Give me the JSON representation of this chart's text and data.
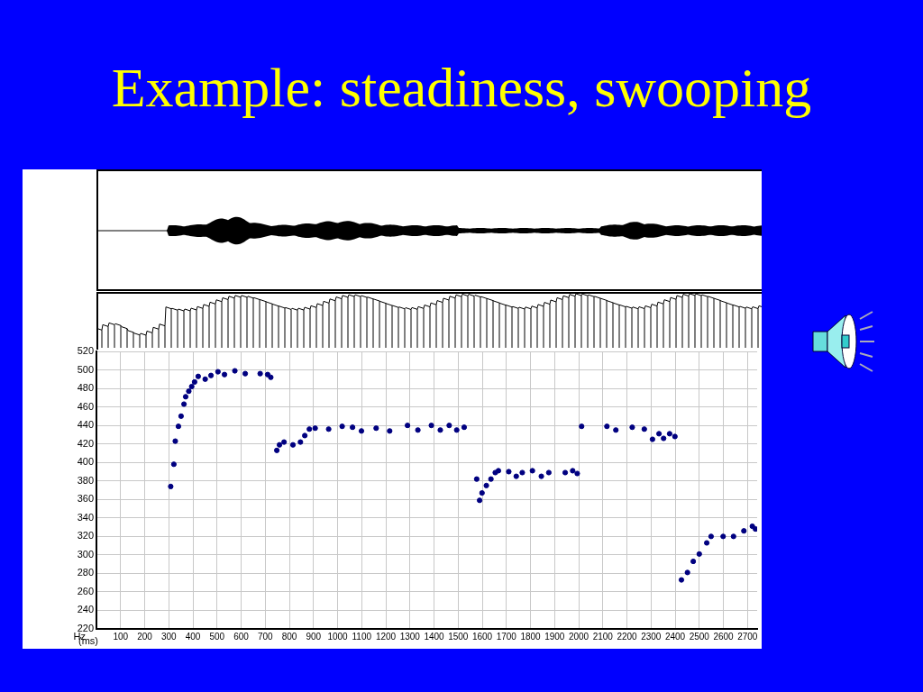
{
  "chart_data": {
    "type": "scatter",
    "title": "Example: steadiness, swooping",
    "xlabel": "(ms)",
    "ylabel": "Hz",
    "xlim": [
      0,
      2740
    ],
    "xticks": [
      100,
      200,
      300,
      400,
      500,
      600,
      700,
      800,
      900,
      1000,
      1100,
      1200,
      1300,
      1400,
      1500,
      1600,
      1700,
      1800,
      1900,
      2000,
      2100,
      2200,
      2300,
      2400,
      2500,
      2600,
      2700
    ],
    "ylim": [
      220,
      520
    ],
    "yticks": [
      220,
      240,
      260,
      280,
      300,
      320,
      340,
      360,
      380,
      400,
      420,
      440,
      460,
      480,
      500,
      520
    ],
    "grid": true,
    "marker": "circle",
    "series": [
      {
        "color": "#000080",
        "x": [
          308,
          321,
          327,
          340,
          351,
          363,
          370,
          383,
          395,
          407,
          422,
          451,
          475,
          504,
          531,
          574,
          617,
          679,
          710,
          723,
          748,
          759,
          778,
          815,
          846,
          864,
          883,
          907,
          963,
          1019,
          1062,
          1099,
          1160,
          1216,
          1290,
          1333,
          1389,
          1426,
          1463,
          1494,
          1525,
          1577,
          1589,
          1599,
          1617,
          1636,
          1654,
          1667,
          1710,
          1741,
          1766,
          1808,
          1845,
          1876,
          1944,
          1975,
          1994,
          2012,
          2117,
          2154,
          2222,
          2272,
          2306,
          2333,
          2352,
          2377,
          2399,
          2426,
          2451,
          2475,
          2500,
          2531,
          2549,
          2599,
          2642,
          2685,
          2720,
          2733
        ],
        "values": [
          374,
          398,
          423,
          439,
          450,
          463,
          471,
          477,
          482,
          487,
          493,
          490,
          494,
          498,
          495,
          499,
          496,
          496,
          495,
          492,
          413,
          419,
          422,
          419,
          422,
          429,
          436,
          437,
          436,
          439,
          438,
          434,
          437,
          434,
          440,
          435,
          440,
          435,
          440,
          435,
          438,
          382,
          359,
          367,
          375,
          382,
          389,
          391,
          390,
          385,
          389,
          391,
          385,
          389,
          389,
          391,
          388,
          439,
          439,
          435,
          438,
          436,
          425,
          431,
          426,
          431,
          428,
          273,
          281,
          293,
          301,
          313,
          320,
          320,
          320,
          326,
          331,
          328
        ]
      }
    ]
  }
}
